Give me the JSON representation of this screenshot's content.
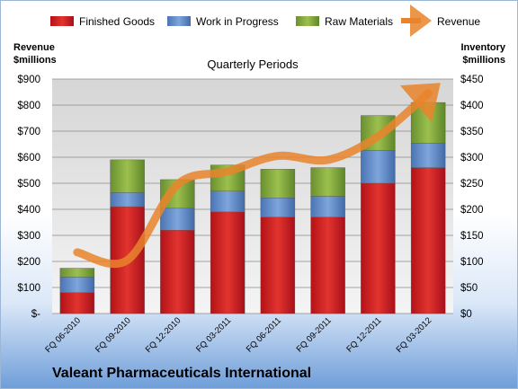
{
  "chart_data": {
    "type": "bar",
    "title": "Quarterly Periods",
    "footer": "Valeant Pharmaceuticals International",
    "categories": [
      "FQ 06-2010",
      "FQ 09-2010",
      "FQ 12-2010",
      "FQ 03-2011",
      "FQ 06-2011",
      "FQ 09-2011",
      "FQ 12-2011",
      "FQ 03-2012"
    ],
    "stacked_series": [
      {
        "name": "Finished Goods",
        "color": "#c8151b",
        "values": [
          40,
          205,
          160,
          195,
          185,
          185,
          250,
          280
        ]
      },
      {
        "name": "Work in Progress",
        "color": "#5b87c8",
        "values": [
          30,
          27,
          42,
          40,
          37,
          40,
          63,
          47
        ]
      },
      {
        "name": "Raw Materials",
        "color": "#7fa33a",
        "values": [
          17,
          63,
          55,
          50,
          55,
          55,
          67,
          78
        ]
      }
    ],
    "line_series": {
      "name": "Revenue",
      "color": "#e9842c",
      "values": [
        235,
        205,
        495,
        545,
        605,
        590,
        680,
        845
      ]
    },
    "y_left": {
      "label_line1": "Revenue",
      "label_line2": "$millions",
      "range": [
        0,
        900
      ],
      "ticks": [
        "$-",
        "$100",
        "$200",
        "$300",
        "$400",
        "$500",
        "$600",
        "$700",
        "$800",
        "$900"
      ]
    },
    "y_right": {
      "label_line1": "Inventory",
      "label_line2": "$millions",
      "range": [
        0,
        450
      ],
      "ticks": [
        "$0",
        "$50",
        "$100",
        "$150",
        "$200",
        "$250",
        "$300",
        "$350",
        "$400",
        "$450"
      ]
    },
    "legend_position": "top",
    "grid": true
  }
}
